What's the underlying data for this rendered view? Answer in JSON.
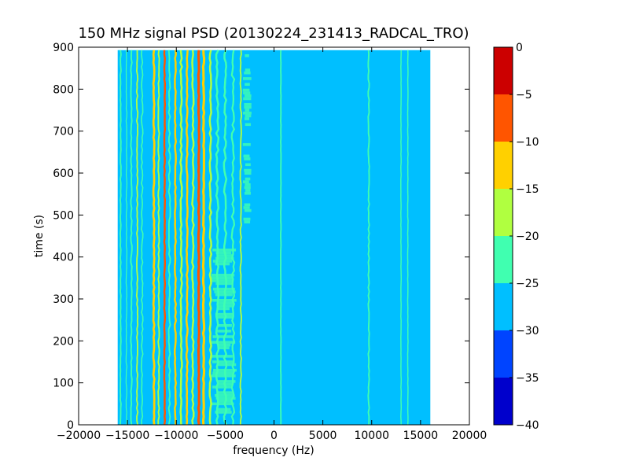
{
  "chart_data": {
    "type": "heatmap",
    "title": "150 MHz signal PSD (20130224_231413_RADCAL_TRO)",
    "xlabel": "frequency (Hz)",
    "ylabel": "time (s)",
    "xlim": [
      -20000,
      20000
    ],
    "ylim": [
      0,
      900
    ],
    "xticks": [
      -20000,
      -15000,
      -10000,
      -5000,
      0,
      5000,
      10000,
      15000,
      20000
    ],
    "xtick_labels": [
      "−20000",
      "−15000",
      "−10000",
      "−5000",
      "0",
      "5000",
      "10000",
      "15000",
      "20000"
    ],
    "yticks": [
      0,
      100,
      200,
      300,
      400,
      500,
      600,
      700,
      800,
      900
    ],
    "ytick_labels": [
      "0",
      "100",
      "200",
      "300",
      "400",
      "500",
      "600",
      "700",
      "800",
      "900"
    ],
    "data_extent": {
      "freq": [
        -16000,
        16000
      ],
      "time": [
        0,
        893
      ]
    },
    "background_level": -27.5,
    "colorbar": {
      "levels": [
        -40,
        -35,
        -30,
        -25,
        -20,
        -15,
        -10,
        -5,
        0
      ],
      "tick_labels": [
        "−40",
        "−35",
        "−30",
        "−25",
        "−20",
        "−15",
        "−10",
        "−5",
        "0"
      ],
      "colors": [
        "#0000cc",
        "#0044ff",
        "#00bfff",
        "#40ffb0",
        "#b0ff40",
        "#ffd000",
        "#ff5500",
        "#cc0000"
      ]
    },
    "signal_lines": [
      {
        "freq": -15700,
        "level": -22,
        "width": 150,
        "wobble": 40,
        "t0": 0,
        "t1": 893
      },
      {
        "freq": -15100,
        "level": -22,
        "width": 100,
        "wobble": 40,
        "t0": 0,
        "t1": 893
      },
      {
        "freq": -14600,
        "level": -22,
        "width": 150,
        "wobble": 60,
        "t0": 0,
        "t1": 893
      },
      {
        "freq": -14000,
        "level": -17,
        "width": 150,
        "wobble": 60,
        "t0": 0,
        "t1": 893
      },
      {
        "freq": -13500,
        "level": -22,
        "width": 130,
        "wobble": 80,
        "t0": 0,
        "t1": 893
      },
      {
        "freq": -12300,
        "level": -12,
        "width": 220,
        "wobble": 50,
        "t0": 0,
        "t1": 893
      },
      {
        "freq": -11800,
        "level": -17,
        "width": 150,
        "wobble": 60,
        "t0": 0,
        "t1": 893
      },
      {
        "freq": -11200,
        "level": -7,
        "width": 200,
        "wobble": 40,
        "t0": 0,
        "t1": 893
      },
      {
        "freq": -10700,
        "level": -22,
        "width": 150,
        "wobble": 80,
        "t0": 0,
        "t1": 893
      },
      {
        "freq": -10100,
        "level": -12,
        "width": 200,
        "wobble": 60,
        "t0": 0,
        "t1": 893
      },
      {
        "freq": -9500,
        "level": -17,
        "width": 200,
        "wobble": 80,
        "t0": 0,
        "t1": 893
      },
      {
        "freq": -8900,
        "level": -12,
        "width": 200,
        "wobble": 60,
        "t0": 0,
        "t1": 893
      },
      {
        "freq": -8300,
        "level": -17,
        "width": 200,
        "wobble": 80,
        "t0": 0,
        "t1": 893
      },
      {
        "freq": -7700,
        "level": -7,
        "width": 250,
        "wobble": 40,
        "t0": 0,
        "t1": 893
      },
      {
        "freq": -7200,
        "level": -12,
        "width": 250,
        "wobble": 50,
        "t0": 0,
        "t1": 893
      },
      {
        "freq": -6500,
        "level": -17,
        "width": 200,
        "wobble": 80,
        "t0": 0,
        "t1": 893
      },
      {
        "freq": -5800,
        "level": -22,
        "width": 200,
        "wobble": 120,
        "t0": 0,
        "t1": 893
      },
      {
        "freq": -5000,
        "level": -22,
        "width": 200,
        "wobble": 120,
        "t0": 0,
        "t1": 893
      },
      {
        "freq": -4200,
        "level": -22,
        "width": 180,
        "wobble": 140,
        "t0": 0,
        "t1": 893
      },
      {
        "freq": -3400,
        "level": -17,
        "width": 150,
        "wobble": 60,
        "t0": 0,
        "t1": 893
      },
      {
        "freq": 700,
        "level": -22,
        "width": 150,
        "wobble": 20,
        "t0": 0,
        "t1": 893
      },
      {
        "freq": 9700,
        "level": -22,
        "width": 150,
        "wobble": 60,
        "t0": 0,
        "t1": 893
      },
      {
        "freq": 13000,
        "level": -22,
        "width": 120,
        "wobble": 20,
        "t0": 0,
        "t1": 893
      },
      {
        "freq": 13700,
        "level": -22,
        "width": 120,
        "wobble": 20,
        "t0": 0,
        "t1": 893
      }
    ],
    "noise_patches": [
      {
        "freq": [
          -3200,
          -2300
        ],
        "time": [
          480,
          890
        ],
        "level": -22
      },
      {
        "freq": [
          -6500,
          -3800
        ],
        "time": [
          20,
          420
        ],
        "level": -22
      }
    ],
    "legend": "colorbar-right",
    "grid": false
  }
}
